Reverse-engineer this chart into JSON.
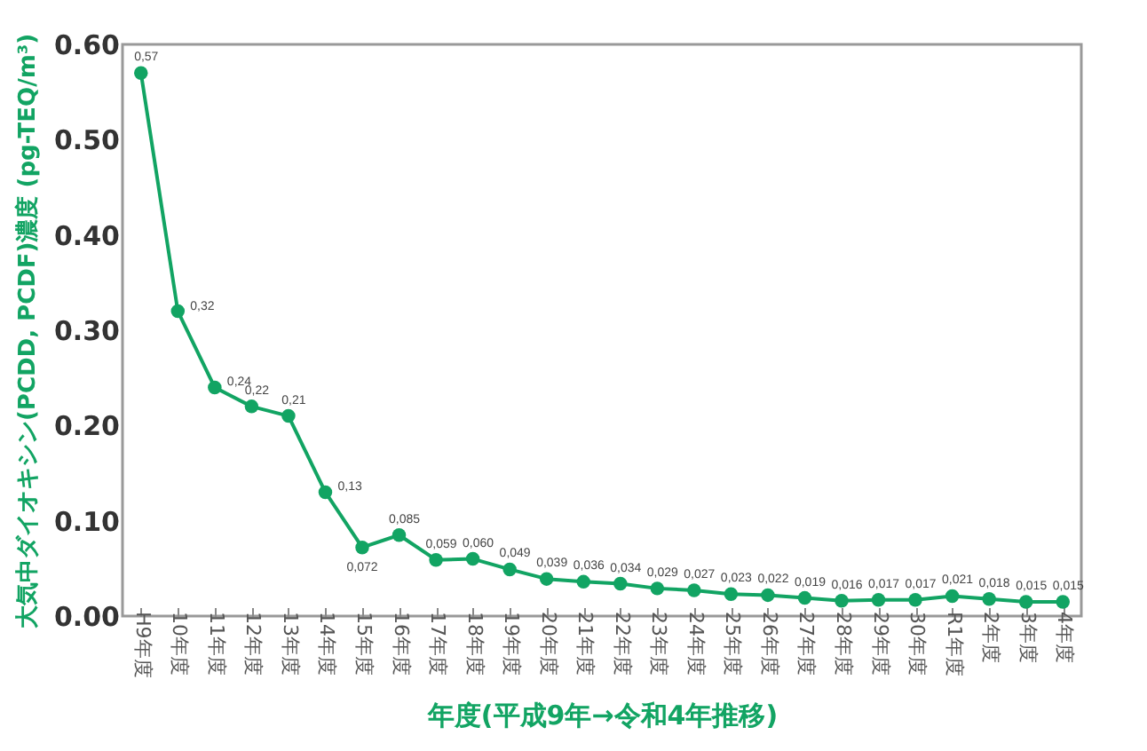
{
  "chart_data": {
    "type": "line",
    "xlabel": "年度(平成9年→令和4年推移)",
    "ylabel": "大気中ダイオキシン(PCDD, PCDF)濃度 (pg-TEQ/m³)",
    "categories": [
      "H9年度",
      "10年度",
      "11年度",
      "12年度",
      "13年度",
      "14年度",
      "15年度",
      "16年度",
      "17年度",
      "18年度",
      "19年度",
      "20年度",
      "21年度",
      "22年度",
      "23年度",
      "24年度",
      "25年度",
      "26年度",
      "27年度",
      "28年度",
      "29年度",
      "30年度",
      "R1年度",
      "2年度",
      "3年度",
      "4年度"
    ],
    "series": [
      {
        "color": "#12a463",
        "values": [
          0.57,
          0.32,
          0.24,
          0.22,
          0.21,
          0.13,
          0.072,
          0.085,
          0.059,
          0.06,
          0.049,
          0.039,
          0.036,
          0.034,
          0.029,
          0.027,
          0.023,
          0.022,
          0.019,
          0.016,
          0.017,
          0.017,
          0.021,
          0.018,
          0.015,
          0.015
        ],
        "value_labels": [
          "0,57",
          "0,32",
          "0,24",
          "0,22",
          "0,21",
          "0,13",
          "0,072",
          "0,085",
          "0,059",
          "0,060",
          "0,049",
          "0,039",
          "0,036",
          "0,034",
          "0,029",
          "0,027",
          "0,023",
          "0,022",
          "0,019",
          "0,016",
          "0,017",
          "0,017",
          "0,021",
          "0,018",
          "0,015",
          "0,015"
        ]
      }
    ],
    "ylim": [
      0,
      0.6
    ],
    "yticks": [
      {
        "value": 0,
        "label": "0.00"
      },
      {
        "value": 0.1,
        "label": "0.10"
      },
      {
        "value": 0.2,
        "label": "0.20"
      },
      {
        "value": 0.3,
        "label": "0.30"
      },
      {
        "value": 0.4,
        "label": "0.40"
      },
      {
        "value": 0.5,
        "label": "0.50"
      },
      {
        "value": 0.6,
        "label": "0.60"
      }
    ],
    "grid": false,
    "marker": "circle",
    "line_style": "solid"
  }
}
